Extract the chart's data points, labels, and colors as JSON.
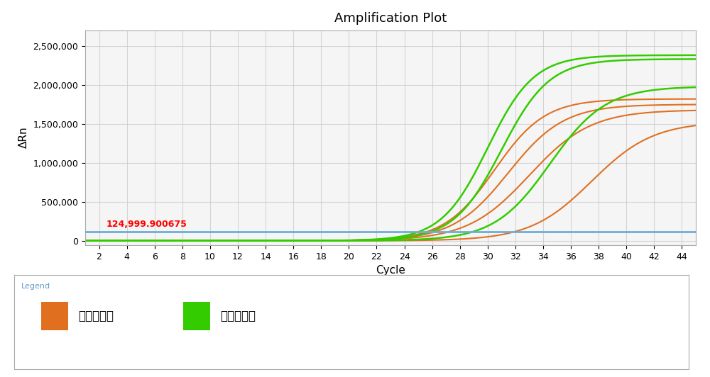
{
  "title": "Amplification Plot",
  "xlabel": "Cycle",
  "ylabel": "ΔRn",
  "xlim": [
    1,
    45
  ],
  "ylim": [
    -50000,
    2700000
  ],
  "yticks": [
    0,
    500000,
    1000000,
    1500000,
    2000000,
    2500000
  ],
  "ytick_labels": [
    "0",
    "500,000",
    "1,000,000",
    "1,500,000",
    "2,000,000",
    "2,500,000"
  ],
  "xticks": [
    2,
    4,
    6,
    8,
    10,
    12,
    14,
    16,
    18,
    20,
    22,
    24,
    26,
    28,
    30,
    32,
    34,
    36,
    38,
    40,
    42,
    44
  ],
  "threshold_value": 124999.900675,
  "threshold_label": "124,999.900675",
  "threshold_color": "#6baed6",
  "bg_color": "#ffffff",
  "plot_bg_color": "#f5f5f5",
  "grid_color": "#cccccc",
  "orange_color": "#e07020",
  "green_color": "#33cc00",
  "threshold_text_color": "#ff0000",
  "legend_title": "Legend",
  "legend_label_orange": "达安释放剂",
  "legend_label_green": "对照释放剂",
  "orange_curves": [
    {
      "midpoint": 30.5,
      "plateau": 1820000,
      "steepness": 0.55
    },
    {
      "midpoint": 31.5,
      "plateau": 1750000,
      "steepness": 0.5
    },
    {
      "midpoint": 33.0,
      "plateau": 1680000,
      "steepness": 0.45
    },
    {
      "midpoint": 37.5,
      "plateau": 1530000,
      "steepness": 0.45
    }
  ],
  "green_curves": [
    {
      "midpoint": 30.0,
      "plateau": 2380000,
      "steepness": 0.6
    },
    {
      "midpoint": 31.0,
      "plateau": 2330000,
      "steepness": 0.58
    },
    {
      "midpoint": 34.5,
      "plateau": 1980000,
      "steepness": 0.5
    }
  ]
}
